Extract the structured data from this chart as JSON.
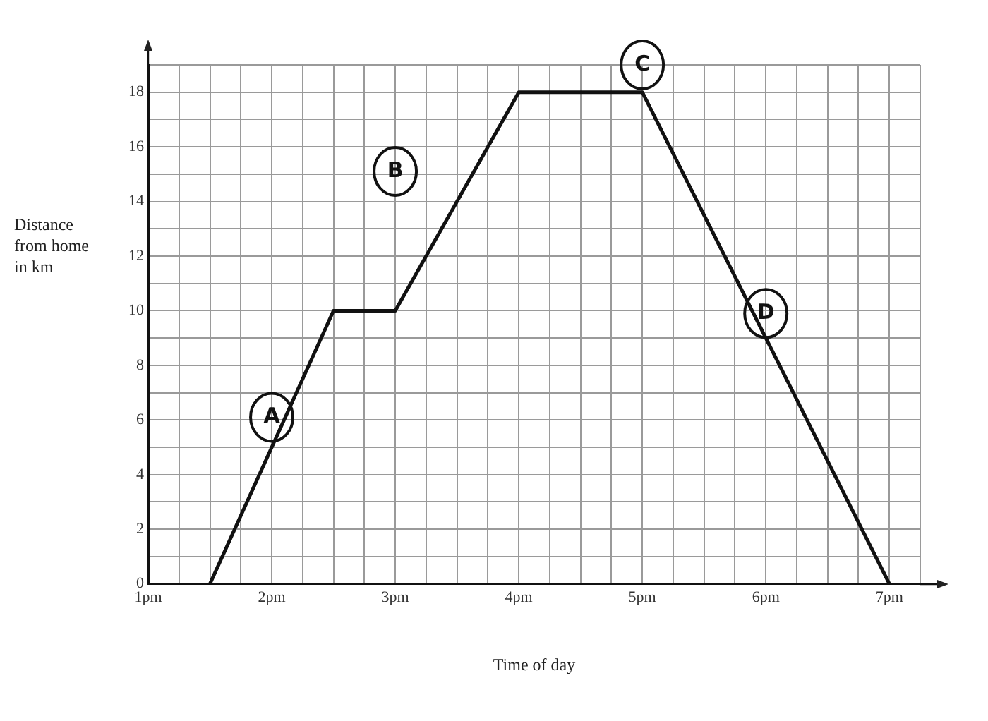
{
  "chart_data": {
    "type": "line",
    "xlabel": "Time of day",
    "ylabel": "Distance from home in km",
    "categories": [
      "1pm",
      null,
      null,
      null,
      "2pm",
      null,
      null,
      null,
      "3pm",
      null,
      null,
      null,
      "4pm",
      null,
      null,
      null,
      "5pm",
      null,
      null,
      null,
      "6pm",
      null,
      null,
      null,
      "7pm",
      null
    ],
    "series": [
      {
        "color": "#111111",
        "values": [
          null,
          null,
          0,
          null,
          null,
          null,
          10,
          null,
          10,
          null,
          null,
          null,
          18,
          null,
          null,
          null,
          18,
          null,
          null,
          null,
          null,
          null,
          null,
          null,
          0,
          null
        ]
      }
    ],
    "ylim": [
      0,
      19
    ],
    "yticks": [
      0,
      {
        "value": 1,
        "label": null
      },
      2,
      {
        "value": 3,
        "label": null
      },
      4,
      {
        "value": 5,
        "label": null
      },
      6,
      {
        "value": 7,
        "label": null
      },
      8,
      {
        "value": 9,
        "label": null
      },
      10,
      {
        "value": 11,
        "label": null
      },
      12,
      {
        "value": 13,
        "label": null
      },
      14,
      {
        "value": 15,
        "label": null
      },
      16,
      {
        "value": 17,
        "label": null
      },
      18,
      {
        "value": 19,
        "label": null
      }
    ],
    "grid": true,
    "legend": false,
    "marker": "none",
    "line_style": "solid",
    "annotations": [
      {
        "text": "A",
        "x": "2pm",
        "y": 6.1
      },
      {
        "text": "B",
        "x": "3pm",
        "y": 15.1
      },
      {
        "text": "C",
        "x": "5pm",
        "y": 19
      },
      {
        "text": "D",
        "x": "6pm",
        "y": 9.9
      }
    ]
  }
}
